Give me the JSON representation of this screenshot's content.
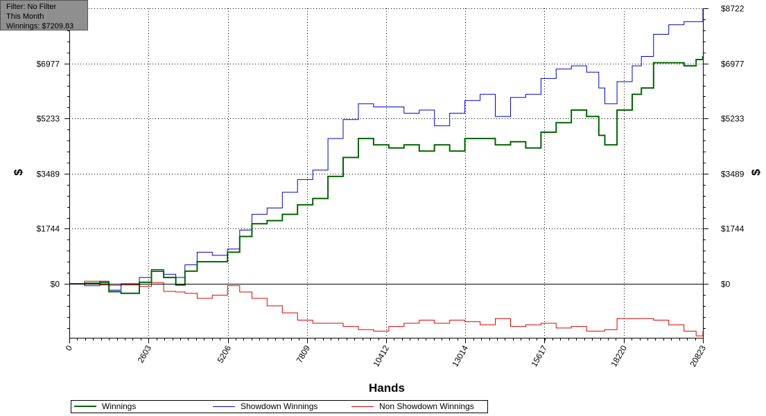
{
  "filter_box": {
    "line1": "Filter: No Filter",
    "line2": "This Month",
    "line3": "Winnings: $7209.83"
  },
  "colors": {
    "winnings": "#006400",
    "showdown": "#0000cc",
    "non_showdown": "#dd0000",
    "zero_line": "#000000",
    "grid": "#000000"
  },
  "chart_data": {
    "type": "line",
    "xlabel": "Hands",
    "ylabel": "$",
    "xlim": [
      0,
      20823
    ],
    "ylim": [
      -1744,
      8722
    ],
    "x_ticks": [
      "0",
      "2603",
      "5206",
      "7809",
      "10412",
      "13014",
      "15617",
      "18220",
      "20823"
    ],
    "x_tick_values": [
      0,
      2603,
      5206,
      7809,
      10412,
      13014,
      15617,
      18220,
      20823
    ],
    "y_ticks": [
      "$0",
      "$1744",
      "$3489",
      "$5233",
      "$6977",
      "$8722"
    ],
    "y_tick_values": [
      0,
      1744,
      3489,
      5233,
      6977,
      8722
    ],
    "grid": true,
    "legend_position": "bottom",
    "series": [
      {
        "name": "Winnings",
        "x": [
          0,
          500,
          1000,
          1300,
          1700,
          2300,
          2700,
          3100,
          3500,
          3800,
          4200,
          4700,
          5200,
          5600,
          6000,
          6500,
          7000,
          7500,
          8000,
          8500,
          9000,
          9500,
          10000,
          10500,
          11000,
          11500,
          12000,
          12500,
          13000,
          13500,
          14000,
          14500,
          15000,
          15500,
          16000,
          16500,
          17000,
          17400,
          17600,
          18000,
          18500,
          18800,
          19200,
          19700,
          20200,
          20600,
          20823
        ],
        "values": [
          0,
          20,
          40,
          -250,
          -300,
          50,
          400,
          200,
          -40,
          400,
          700,
          700,
          1000,
          1500,
          1900,
          2000,
          2200,
          2500,
          2700,
          3400,
          4000,
          4600,
          4400,
          4300,
          4400,
          4200,
          4400,
          4200,
          4600,
          4600,
          4400,
          4500,
          4300,
          4800,
          5100,
          5500,
          5300,
          4700,
          4400,
          5500,
          6000,
          6200,
          7000,
          7000,
          6900,
          7100,
          7210
        ]
      },
      {
        "name": "Showdown Winnings",
        "x": [
          0,
          500,
          1000,
          1300,
          1700,
          2300,
          2700,
          3100,
          3500,
          3800,
          4200,
          4700,
          5200,
          5600,
          6000,
          6500,
          7000,
          7500,
          8000,
          8500,
          9000,
          9500,
          10000,
          10500,
          11000,
          11500,
          12000,
          12500,
          13000,
          13500,
          14000,
          14500,
          15000,
          15500,
          16000,
          16500,
          17000,
          17400,
          17600,
          18000,
          18500,
          18800,
          19200,
          19700,
          20200,
          20600,
          20823
        ],
        "values": [
          0,
          -60,
          80,
          -200,
          0,
          200,
          450,
          300,
          200,
          600,
          1000,
          900,
          1100,
          1700,
          2200,
          2400,
          2900,
          3300,
          3600,
          4600,
          5200,
          5700,
          5600,
          5600,
          5400,
          5500,
          5000,
          5400,
          5800,
          6000,
          5300,
          5900,
          6000,
          6500,
          6800,
          6900,
          6700,
          6200,
          5700,
          6400,
          6900,
          7200,
          7900,
          8200,
          8300,
          8300,
          8700
        ]
      },
      {
        "name": "Non Showdown Winnings",
        "x": [
          0,
          500,
          1000,
          1300,
          1700,
          2300,
          2700,
          3100,
          3500,
          3800,
          4200,
          4700,
          5200,
          5600,
          6000,
          6500,
          7000,
          7500,
          8000,
          8500,
          9000,
          9500,
          10000,
          10500,
          11000,
          11500,
          12000,
          12500,
          13000,
          13500,
          14000,
          14500,
          15000,
          15500,
          16000,
          16500,
          17000,
          17400,
          17600,
          18000,
          18500,
          18800,
          19200,
          19700,
          20200,
          20600,
          20823
        ],
        "values": [
          0,
          80,
          -40,
          -50,
          -40,
          -80,
          40,
          -240,
          -260,
          -300,
          -460,
          -360,
          -60,
          -260,
          -460,
          -700,
          -920,
          -1150,
          -1250,
          -1250,
          -1350,
          -1450,
          -1500,
          -1350,
          -1250,
          -1150,
          -1250,
          -1150,
          -1200,
          -1300,
          -1100,
          -1350,
          -1300,
          -1250,
          -1400,
          -1350,
          -1500,
          -1500,
          -1450,
          -1100,
          -1100,
          -1100,
          -1150,
          -1300,
          -1500,
          -1650,
          -1500
        ]
      }
    ]
  },
  "legend": [
    {
      "label": "Winnings"
    },
    {
      "label": "Showdown Winnings"
    },
    {
      "label": "Non Showdown Winnings"
    }
  ]
}
